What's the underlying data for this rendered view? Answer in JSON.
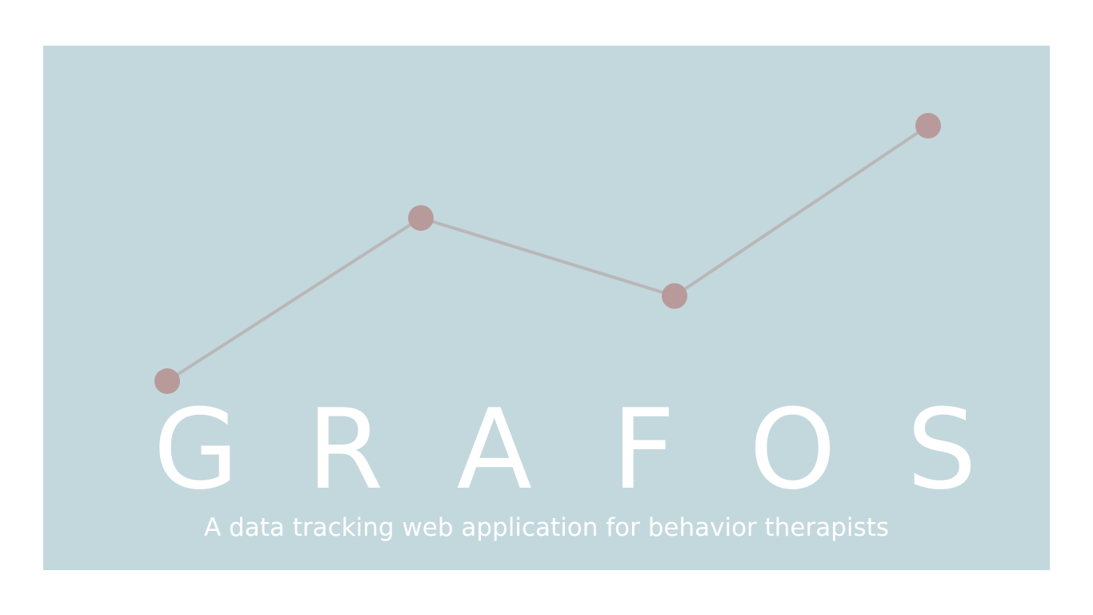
{
  "hero": {
    "background_color": "#c3d8dd",
    "brand_letters": [
      "G",
      "R",
      "A",
      "F",
      "O",
      "S"
    ],
    "tagline": "A data tracking web application for behavior therapists"
  },
  "logo": {
    "icon": "line-graph-logo-icon",
    "line_color": "#b9b7b8",
    "point_color": "#b89a9a",
    "points": [
      {
        "x": 1,
        "y": 1
      },
      {
        "x": 2,
        "y": 3.3
      },
      {
        "x": 3,
        "y": 2.2
      },
      {
        "x": 4,
        "y": 4.6
      }
    ]
  }
}
